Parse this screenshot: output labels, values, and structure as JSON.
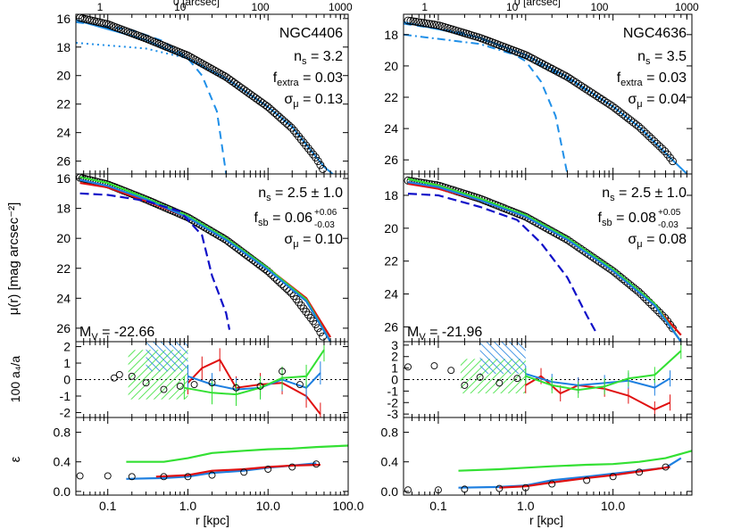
{
  "figure": {
    "ylabel_main": "μ(r)  [mag arcsec⁻²]",
    "ylabel_a4": "100 a₄/a",
    "ylabel_eps": "ε",
    "xlabel": "r  [kpc]",
    "top_axis_label": "0 [arcsec]"
  },
  "colors": {
    "data_points": "#000000",
    "model": "#1f8fe8",
    "red_band": "#e01010",
    "green_band": "#33e033",
    "blue_band": "#1e7fe0",
    "darkblue_band": "#1010c8",
    "reference_line": "#000000"
  },
  "chart_data": [
    {
      "type": "scatter",
      "galaxy": "NGC4406",
      "panel": "top",
      "ylim": [
        26.9,
        15.7
      ],
      "xlim_kpc": [
        0.04,
        100
      ],
      "x_log": true,
      "yticks": [
        16,
        18,
        20,
        22,
        24,
        26
      ],
      "xticks_kpc": [
        "0.1",
        "1.0",
        "10.0",
        "100.0"
      ],
      "top_ticks_arcsec": [
        "1",
        "10",
        "100",
        "1000"
      ],
      "annotations": [
        "NGC4406",
        "n_s = 3.2",
        "f_extra = 0.03",
        "σ_μ = 0.13"
      ],
      "profile_points": {
        "r_kpc": [
          0.045,
          0.1,
          0.3,
          1.0,
          3.0,
          10.0,
          20.0,
          40.0,
          50.0
        ],
        "mu": [
          15.95,
          16.4,
          17.4,
          18.6,
          20.1,
          22.2,
          23.7,
          25.8,
          26.7
        ]
      },
      "series": [
        {
          "name": "sersic_fit",
          "style": "solid",
          "r_kpc": [
            0.04,
            0.3,
            1,
            3,
            10,
            20,
            50,
            100
          ],
          "mu": [
            16.1,
            17.5,
            18.8,
            20.2,
            22.2,
            23.6,
            26.4,
            27.8
          ]
        },
        {
          "name": "inner_component",
          "style": "dashed",
          "r_kpc": [
            0.04,
            0.2,
            0.5,
            1.0,
            1.5,
            2.3,
            3.0
          ],
          "mu": [
            16.25,
            16.8,
            17.6,
            18.8,
            20.0,
            22.5,
            26.9
          ]
        },
        {
          "name": "outer_component",
          "style": "dotted",
          "r_kpc": [
            0.04,
            0.3,
            1,
            3,
            10,
            20
          ],
          "mu": [
            17.7,
            18.1,
            18.8,
            20.2,
            22.2,
            23.6
          ]
        }
      ]
    },
    {
      "type": "line",
      "galaxy": "NGC4406",
      "panel": "middle",
      "ylim": [
        26.9,
        15.7
      ],
      "yticks": [
        16,
        18,
        20,
        22,
        24,
        26
      ],
      "annotations": [
        "n_s = 2.5 ± 1.0",
        "f_sb = 0.06 +0.06 −0.03",
        "σ_μ = 0.10",
        "M_V = -22.66"
      ],
      "series": [
        {
          "name": "red",
          "r_kpc": [
            0.045,
            0.1,
            0.3,
            1,
            3,
            10,
            30,
            60
          ],
          "mu": [
            16.3,
            16.6,
            17.5,
            18.6,
            20.0,
            22.0,
            24.0,
            26.6
          ]
        },
        {
          "name": "green",
          "r_kpc": [
            0.045,
            0.1,
            0.3,
            1,
            3,
            10,
            30,
            60
          ],
          "mu": [
            15.9,
            16.3,
            17.3,
            18.5,
            20.0,
            22.0,
            24.1,
            26.9
          ]
        },
        {
          "name": "blue",
          "r_kpc": [
            0.045,
            0.1,
            0.3,
            1,
            3,
            10,
            30,
            60
          ],
          "mu": [
            16.1,
            16.5,
            17.4,
            18.6,
            20.1,
            22.1,
            24.2,
            26.9
          ]
        },
        {
          "name": "darkblue",
          "r_kpc": [
            0.045,
            0.1,
            0.3,
            0.8,
            1.5,
            2.0,
            3.0,
            3.3
          ],
          "mu": [
            17.0,
            17.1,
            17.5,
            18.2,
            19.8,
            22.5,
            25.0,
            26.1
          ]
        }
      ]
    },
    {
      "type": "scatter",
      "galaxy": "NGC4406",
      "panel": "a4",
      "ylim": [
        -2.3,
        2.3
      ],
      "yticks": [
        2,
        1,
        0,
        -1,
        -2
      ],
      "points": {
        "r_kpc": [
          0.12,
          0.14,
          0.2,
          0.3,
          0.5,
          0.8,
          1.2,
          2,
          4,
          8,
          15,
          25
        ],
        "a4": [
          0.1,
          0.3,
          0.2,
          -0.2,
          -0.6,
          -0.4,
          -0.3,
          -0.2,
          -0.5,
          -0.4,
          0.5,
          -0.3
        ]
      },
      "series": [
        {
          "name": "red",
          "r_kpc": [
            1.0,
            1.5,
            2.5,
            4,
            8,
            15,
            30,
            45
          ],
          "a4": [
            -0.2,
            0.7,
            1.2,
            -0.5,
            -0.3,
            -0.2,
            -1.0,
            -2.1
          ]
        },
        {
          "name": "blue",
          "r_kpc": [
            1.0,
            2,
            4,
            8,
            15,
            30,
            45
          ],
          "a4": [
            0.2,
            -0.3,
            -0.6,
            -0.5,
            0.0,
            -0.5,
            0.4
          ]
        },
        {
          "name": "green",
          "r_kpc": [
            0.9,
            2,
            4,
            8,
            15,
            30,
            50
          ],
          "a4": [
            -0.5,
            -0.8,
            -0.9,
            -0.5,
            0.1,
            0.2,
            1.8
          ]
        }
      ]
    },
    {
      "type": "line",
      "galaxy": "NGC4406",
      "panel": "ellipticity",
      "ylim": [
        -0.05,
        1.0
      ],
      "yticks": [
        "0.8",
        "0.4",
        "0.0"
      ],
      "points": {
        "r_kpc": [
          0.045,
          0.1,
          0.2,
          0.5,
          1,
          2,
          5,
          10,
          20,
          40
        ],
        "eps": [
          0.21,
          0.21,
          0.2,
          0.2,
          0.2,
          0.22,
          0.26,
          0.3,
          0.33,
          0.37
        ]
      },
      "series": [
        {
          "name": "green",
          "r_kpc": [
            0.17,
            0.5,
            1,
            2,
            5,
            10,
            20,
            40,
            100
          ],
          "eps": [
            0.4,
            0.4,
            0.45,
            0.52,
            0.55,
            0.57,
            0.58,
            0.6,
            0.62
          ]
        },
        {
          "name": "blue",
          "r_kpc": [
            0.17,
            0.5,
            1,
            2,
            5,
            10,
            20,
            40
          ],
          "eps": [
            0.17,
            0.18,
            0.2,
            0.25,
            0.28,
            0.32,
            0.35,
            0.38
          ]
        },
        {
          "name": "red",
          "r_kpc": [
            0.4,
            1,
            2,
            5,
            10,
            20,
            45
          ],
          "eps": [
            0.2,
            0.22,
            0.28,
            0.3,
            0.33,
            0.35,
            0.36
          ]
        }
      ]
    },
    {
      "type": "scatter",
      "galaxy": "NGC4636",
      "panel": "top",
      "ylim": [
        26.9,
        16.7
      ],
      "xlim_kpc": [
        0.04,
        80
      ],
      "x_log": true,
      "yticks": [
        18,
        20,
        22,
        24,
        26
      ],
      "xticks_kpc": [
        "0.1",
        "1.0",
        "10.0"
      ],
      "top_ticks_arcsec": [
        "1",
        "10",
        "100",
        "1000"
      ],
      "annotations": [
        "NGC4636",
        "n_s = 3.5",
        "f_extra = 0.03",
        "σ_μ = 0.04"
      ],
      "profile_points": {
        "r_kpc": [
          0.045,
          0.1,
          0.3,
          1.0,
          3.0,
          10.0,
          20.0,
          40.0,
          50.0
        ],
        "mu": [
          17.1,
          17.4,
          18.2,
          19.3,
          20.7,
          22.6,
          23.9,
          25.5,
          26.2
        ]
      },
      "series": [
        {
          "name": "sersic_fit",
          "style": "solid",
          "r_kpc": [
            0.04,
            0.3,
            1,
            3,
            10,
            20,
            50,
            80
          ],
          "mu": [
            17.2,
            18.2,
            19.3,
            20.7,
            22.6,
            23.9,
            26.1,
            27.2
          ]
        },
        {
          "name": "inner_component",
          "style": "dashed",
          "r_kpc": [
            0.04,
            0.2,
            0.5,
            1.0,
            1.5,
            2.2,
            3.0
          ],
          "mu": [
            17.3,
            17.9,
            18.7,
            19.7,
            21.0,
            23.2,
            26.9
          ]
        },
        {
          "name": "outer_component",
          "style": "dash-dot",
          "r_kpc": [
            0.04,
            0.3,
            1,
            3,
            10
          ],
          "mu": [
            18.0,
            18.6,
            19.5,
            20.8,
            22.6
          ]
        }
      ]
    },
    {
      "type": "line",
      "galaxy": "NGC4636",
      "panel": "middle",
      "ylim": [
        26.9,
        16.7
      ],
      "yticks": [
        18,
        20,
        22,
        24,
        26
      ],
      "annotations": [
        "n_s = 2.5 ± 1.0",
        "f_sb = 0.08 +0.05 −0.03",
        "σ_μ = 0.08",
        "M_V = -21.96"
      ],
      "series": [
        {
          "name": "red",
          "r_kpc": [
            0.045,
            0.1,
            0.3,
            1,
            3,
            10,
            30,
            60
          ],
          "mu": [
            17.3,
            17.6,
            18.3,
            19.3,
            20.7,
            22.6,
            24.7,
            26.5
          ]
        },
        {
          "name": "green",
          "r_kpc": [
            0.045,
            0.1,
            0.3,
            1,
            3,
            10,
            30,
            60
          ],
          "mu": [
            17.0,
            17.4,
            18.2,
            19.2,
            20.6,
            22.5,
            24.6,
            26.9
          ]
        },
        {
          "name": "blue",
          "r_kpc": [
            0.045,
            0.1,
            0.3,
            1,
            3,
            10,
            30,
            60
          ],
          "mu": [
            17.2,
            17.5,
            18.3,
            19.3,
            20.7,
            22.6,
            24.7,
            26.9
          ]
        },
        {
          "name": "darkblue",
          "r_kpc": [
            0.045,
            0.1,
            0.3,
            0.8,
            1.5,
            3.0,
            5.0,
            6.5
          ],
          "mu": [
            17.9,
            18.0,
            18.7,
            19.5,
            20.9,
            23.0,
            25.3,
            26.4
          ]
        }
      ]
    },
    {
      "type": "scatter",
      "galaxy": "NGC4636",
      "panel": "a4",
      "ylim": [
        -3.3,
        3.3
      ],
      "yticks": [
        3,
        2,
        1,
        0,
        -1,
        -2,
        -3
      ],
      "points": {
        "r_kpc": [
          0.045,
          0.09,
          0.14,
          0.2,
          0.3,
          0.5,
          0.8
        ],
        "a4": [
          1.1,
          1.2,
          0.8,
          -0.5,
          0.2,
          -0.3,
          0.1
        ]
      },
      "series": [
        {
          "name": "red",
          "r_kpc": [
            1.0,
            1.5,
            2.5,
            4,
            8,
            15,
            30,
            45
          ],
          "a4": [
            -0.5,
            0.3,
            -1.2,
            -0.5,
            -0.8,
            -1.4,
            -2.6,
            -2.0
          ]
        },
        {
          "name": "blue",
          "r_kpc": [
            1.0,
            2,
            4,
            8,
            15,
            30,
            45
          ],
          "a4": [
            0.5,
            -0.2,
            -0.5,
            -0.3,
            -0.1,
            -0.7,
            0.1
          ]
        },
        {
          "name": "green",
          "r_kpc": [
            1.0,
            2,
            4,
            8,
            15,
            30,
            60
          ],
          "a4": [
            0.3,
            -0.5,
            -0.9,
            -0.6,
            0.1,
            0.4,
            2.5
          ]
        }
      ]
    },
    {
      "type": "line",
      "galaxy": "NGC4636",
      "panel": "ellipticity",
      "ylim": [
        -0.05,
        1.0
      ],
      "yticks": [
        "0.8",
        "0.4",
        "0.0"
      ],
      "points": {
        "r_kpc": [
          0.045,
          0.1,
          0.2,
          0.5,
          1,
          2,
          5,
          10,
          20,
          40
        ],
        "eps": [
          0.02,
          0.02,
          0.03,
          0.04,
          0.05,
          0.1,
          0.15,
          0.2,
          0.26,
          0.33
        ]
      },
      "series": [
        {
          "name": "green",
          "r_kpc": [
            0.17,
            0.5,
            1,
            2,
            5,
            10,
            20,
            40,
            80
          ],
          "eps": [
            0.28,
            0.3,
            0.32,
            0.34,
            0.36,
            0.37,
            0.4,
            0.45,
            0.55
          ]
        },
        {
          "name": "blue",
          "r_kpc": [
            0.17,
            0.5,
            1,
            2,
            5,
            10,
            20,
            40,
            60
          ],
          "eps": [
            0.05,
            0.06,
            0.08,
            0.15,
            0.2,
            0.24,
            0.28,
            0.32,
            0.45
          ]
        },
        {
          "name": "red",
          "r_kpc": [
            0.5,
            1,
            2,
            5,
            10,
            20,
            45
          ],
          "eps": [
            0.05,
            0.07,
            0.12,
            0.18,
            0.22,
            0.27,
            0.33
          ]
        }
      ]
    }
  ]
}
